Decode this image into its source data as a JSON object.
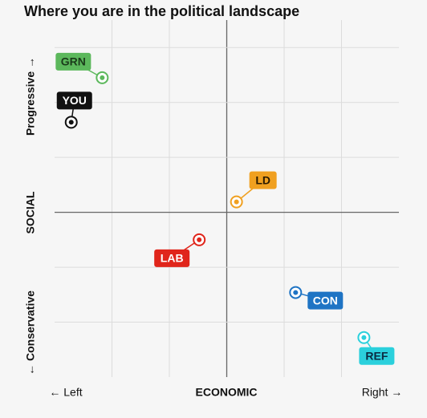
{
  "chart_data": {
    "type": "scatter",
    "title": "Where you are in the political landscape",
    "x_label": "ECONOMIC",
    "x_left_label": "← Left",
    "x_right_label": "Right →",
    "y_label": "SOCIAL",
    "y_top_label": "Progressive →",
    "y_bottom_label": "← Conservative",
    "xlim": [
      -3,
      3
    ],
    "xticks": [
      -2,
      -1,
      0,
      1,
      2
    ],
    "ylim": [
      -3,
      3.5
    ],
    "yticks": [
      -2,
      -1,
      0,
      1,
      2,
      3
    ],
    "grid": true,
    "points": [
      {
        "name": "GRN",
        "x": -2.17,
        "y": 2.45,
        "color": "#5cb85c",
        "text_color": "#1a3a1a"
      },
      {
        "name": "YOU",
        "x": -2.71,
        "y": 1.64,
        "color": "#111111",
        "text_color": "#ffffff"
      },
      {
        "name": "LD",
        "x": 0.17,
        "y": 0.19,
        "color": "#f0a020",
        "text_color": "#2a1a00"
      },
      {
        "name": "LAB",
        "x": -0.48,
        "y": -0.5,
        "color": "#e0251b",
        "text_color": "#ffffff"
      },
      {
        "name": "CON",
        "x": 1.2,
        "y": -1.46,
        "color": "#1f74c4",
        "text_color": "#ffffff"
      },
      {
        "name": "REF",
        "x": 2.39,
        "y": -2.28,
        "color": "#2bd0dc",
        "text_color": "#0a2a40"
      }
    ]
  }
}
